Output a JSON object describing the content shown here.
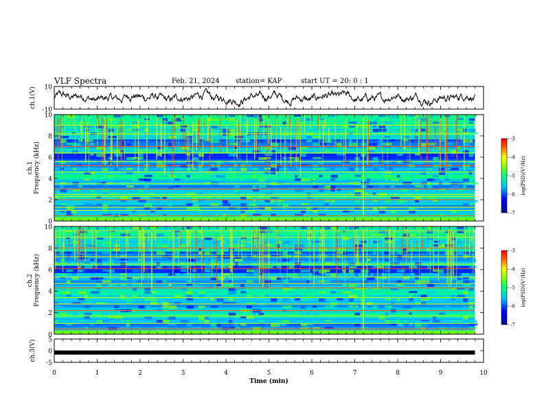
{
  "header": {
    "title": "VLF Spectra",
    "date": "Feb. 21, 2024",
    "station": "station= KAP",
    "start": "start UT =   20: 0  : 1"
  },
  "chart_data": [
    {
      "type": "line",
      "name": "ch1-waveform",
      "ylabel": "ch.1(V)",
      "ylim": [
        -10,
        10
      ],
      "yticks": [
        "10",
        "-10"
      ],
      "xlim": [
        0,
        9.8
      ],
      "note": "noisy waveform oscillating mostly between about -6 and +6 V"
    },
    {
      "type": "heatmap",
      "name": "ch1-spectrogram",
      "ylabel": "ch.1\nFrequency (kHz)",
      "ylim": [
        0,
        10
      ],
      "yticks": [
        "0",
        "2",
        "4",
        "6",
        "8",
        "10"
      ],
      "xlim": [
        0,
        9.8
      ],
      "bands_khz": [
        0.5,
        1.0,
        1.3,
        2.0,
        2.3,
        2.5,
        3.0,
        3.5,
        4.6,
        5.2,
        5.6,
        6.4,
        7.0,
        8.2,
        9.0
      ],
      "colorbar": {
        "label": "log(PSD)(V²/Hz)",
        "range": [
          -7,
          -3
        ],
        "ticks": [
          "-3",
          "-4",
          "-5",
          "-6",
          "-7"
        ]
      }
    },
    {
      "type": "heatmap",
      "name": "ch2-spectrogram",
      "ylabel": "ch.2\nFrequency (kHz)",
      "ylim": [
        0,
        10
      ],
      "yticks": [
        "0",
        "2",
        "4",
        "6",
        "8",
        "10"
      ],
      "xlim": [
        0,
        9.8
      ],
      "bands_khz": [
        0.5,
        1.0,
        1.7,
        2.2,
        2.8,
        3.4,
        4.3,
        4.7,
        5.3,
        6.1,
        6.5,
        7.2,
        8.0,
        9.0,
        9.6
      ],
      "colorbar": {
        "label": "log(PSD)(V²/Hz)",
        "range": [
          -7,
          -3
        ],
        "ticks": [
          "-3",
          "-4",
          "-5",
          "-6",
          "-7"
        ]
      }
    },
    {
      "type": "line",
      "name": "ch3-waveform",
      "ylabel": "ch.3(V)",
      "ylim": [
        -5,
        5
      ],
      "yticks": [
        "5",
        "0",
        "-5"
      ],
      "xlim": [
        0,
        9.8
      ],
      "level": -0.8
    }
  ],
  "xaxis": {
    "label": "Time (min)",
    "range": [
      0,
      10
    ],
    "ticks": [
      "0",
      "1",
      "2",
      "3",
      "4",
      "5",
      "6",
      "7",
      "8",
      "9",
      "10"
    ]
  }
}
